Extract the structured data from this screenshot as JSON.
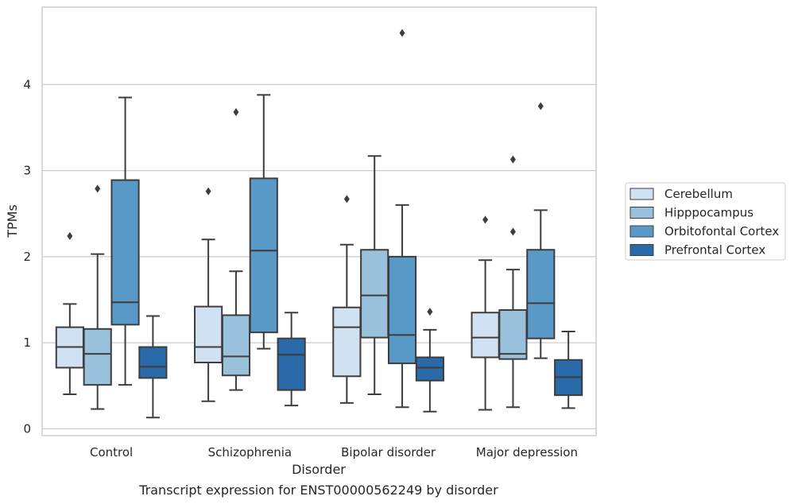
{
  "chart_data": {
    "type": "boxplot",
    "caption": "Transcript expression for ENST00000562249 by disorder",
    "xlabel": "Disorder",
    "ylabel": "TPMs",
    "ylim": [
      -0.08,
      4.9
    ],
    "yticks": [
      0,
      1,
      2,
      3,
      4
    ],
    "grid": true,
    "legend_position": "right",
    "categories": [
      "Control",
      "Schizophrenia",
      "Bipolar disorder",
      "Major depression"
    ],
    "series": [
      {
        "name": "Cerebellum",
        "color": "#d0e1f2",
        "boxes": [
          {
            "whislo": 0.4,
            "q1": 0.71,
            "med": 0.95,
            "q3": 1.18,
            "whishi": 1.45,
            "fliers": [
              2.24
            ]
          },
          {
            "whislo": 0.32,
            "q1": 0.77,
            "med": 0.95,
            "q3": 1.42,
            "whishi": 2.2,
            "fliers": [
              2.76
            ]
          },
          {
            "whislo": 0.3,
            "q1": 0.61,
            "med": 1.18,
            "q3": 1.41,
            "whishi": 2.14,
            "fliers": [
              2.67
            ]
          },
          {
            "whislo": 0.22,
            "q1": 0.83,
            "med": 1.06,
            "q3": 1.35,
            "whishi": 1.96,
            "fliers": [
              2.43
            ]
          }
        ]
      },
      {
        "name": "Hipppocampus",
        "color": "#9ac1dc",
        "boxes": [
          {
            "whislo": 0.23,
            "q1": 0.51,
            "med": 0.87,
            "q3": 1.16,
            "whishi": 2.03,
            "fliers": [
              2.79
            ]
          },
          {
            "whislo": 0.45,
            "q1": 0.62,
            "med": 0.84,
            "q3": 1.32,
            "whishi": 1.83,
            "fliers": [
              3.68
            ]
          },
          {
            "whislo": 0.4,
            "q1": 1.06,
            "med": 1.55,
            "q3": 2.08,
            "whishi": 3.17,
            "fliers": []
          },
          {
            "whislo": 0.25,
            "q1": 0.81,
            "med": 0.87,
            "q3": 1.38,
            "whishi": 1.85,
            "fliers": [
              2.29,
              3.13
            ]
          }
        ]
      },
      {
        "name": "Orbitofontal Cortex",
        "color": "#5899c7",
        "boxes": [
          {
            "whislo": 0.51,
            "q1": 1.21,
            "med": 1.47,
            "q3": 2.89,
            "whishi": 3.85,
            "fliers": []
          },
          {
            "whislo": 0.93,
            "q1": 1.12,
            "med": 2.07,
            "q3": 2.91,
            "whishi": 3.88,
            "fliers": []
          },
          {
            "whislo": 0.25,
            "q1": 0.76,
            "med": 1.09,
            "q3": 2.0,
            "whishi": 2.6,
            "fliers": [
              4.6
            ]
          },
          {
            "whislo": 0.82,
            "q1": 1.05,
            "med": 1.46,
            "q3": 2.08,
            "whishi": 2.54,
            "fliers": [
              3.75
            ]
          }
        ]
      },
      {
        "name": "Prefrontal Cortex",
        "color": "#2b6aa8",
        "boxes": [
          {
            "whislo": 0.13,
            "q1": 0.59,
            "med": 0.72,
            "q3": 0.95,
            "whishi": 1.31,
            "fliers": []
          },
          {
            "whislo": 0.27,
            "q1": 0.45,
            "med": 0.86,
            "q3": 1.05,
            "whishi": 1.35,
            "fliers": []
          },
          {
            "whislo": 0.2,
            "q1": 0.56,
            "med": 0.71,
            "q3": 0.83,
            "whishi": 1.15,
            "fliers": [
              1.36
            ]
          },
          {
            "whislo": 0.24,
            "q1": 0.39,
            "med": 0.6,
            "q3": 0.8,
            "whishi": 1.13,
            "fliers": []
          }
        ]
      }
    ]
  }
}
